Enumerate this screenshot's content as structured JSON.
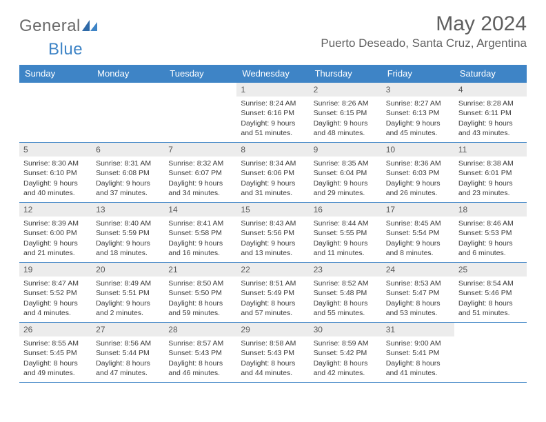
{
  "logo": {
    "part1": "General",
    "part2": "Blue"
  },
  "title": "May 2024",
  "location": "Puerto Deseado, Santa Cruz, Argentina",
  "colors": {
    "header_bg": "#3e84c6",
    "header_text": "#ffffff",
    "daynum_bg": "#ececec",
    "border": "#3e84c6",
    "title_text": "#5f5f5f",
    "body_text": "#3a3a3a"
  },
  "day_headers": [
    "Sunday",
    "Monday",
    "Tuesday",
    "Wednesday",
    "Thursday",
    "Friday",
    "Saturday"
  ],
  "weeks": [
    [
      {
        "day": "",
        "sunrise": "",
        "sunset": "",
        "daylight": ""
      },
      {
        "day": "",
        "sunrise": "",
        "sunset": "",
        "daylight": ""
      },
      {
        "day": "",
        "sunrise": "",
        "sunset": "",
        "daylight": ""
      },
      {
        "day": "1",
        "sunrise": "Sunrise: 8:24 AM",
        "sunset": "Sunset: 6:16 PM",
        "daylight": "Daylight: 9 hours and 51 minutes."
      },
      {
        "day": "2",
        "sunrise": "Sunrise: 8:26 AM",
        "sunset": "Sunset: 6:15 PM",
        "daylight": "Daylight: 9 hours and 48 minutes."
      },
      {
        "day": "3",
        "sunrise": "Sunrise: 8:27 AM",
        "sunset": "Sunset: 6:13 PM",
        "daylight": "Daylight: 9 hours and 45 minutes."
      },
      {
        "day": "4",
        "sunrise": "Sunrise: 8:28 AM",
        "sunset": "Sunset: 6:11 PM",
        "daylight": "Daylight: 9 hours and 43 minutes."
      }
    ],
    [
      {
        "day": "5",
        "sunrise": "Sunrise: 8:30 AM",
        "sunset": "Sunset: 6:10 PM",
        "daylight": "Daylight: 9 hours and 40 minutes."
      },
      {
        "day": "6",
        "sunrise": "Sunrise: 8:31 AM",
        "sunset": "Sunset: 6:08 PM",
        "daylight": "Daylight: 9 hours and 37 minutes."
      },
      {
        "day": "7",
        "sunrise": "Sunrise: 8:32 AM",
        "sunset": "Sunset: 6:07 PM",
        "daylight": "Daylight: 9 hours and 34 minutes."
      },
      {
        "day": "8",
        "sunrise": "Sunrise: 8:34 AM",
        "sunset": "Sunset: 6:06 PM",
        "daylight": "Daylight: 9 hours and 31 minutes."
      },
      {
        "day": "9",
        "sunrise": "Sunrise: 8:35 AM",
        "sunset": "Sunset: 6:04 PM",
        "daylight": "Daylight: 9 hours and 29 minutes."
      },
      {
        "day": "10",
        "sunrise": "Sunrise: 8:36 AM",
        "sunset": "Sunset: 6:03 PM",
        "daylight": "Daylight: 9 hours and 26 minutes."
      },
      {
        "day": "11",
        "sunrise": "Sunrise: 8:38 AM",
        "sunset": "Sunset: 6:01 PM",
        "daylight": "Daylight: 9 hours and 23 minutes."
      }
    ],
    [
      {
        "day": "12",
        "sunrise": "Sunrise: 8:39 AM",
        "sunset": "Sunset: 6:00 PM",
        "daylight": "Daylight: 9 hours and 21 minutes."
      },
      {
        "day": "13",
        "sunrise": "Sunrise: 8:40 AM",
        "sunset": "Sunset: 5:59 PM",
        "daylight": "Daylight: 9 hours and 18 minutes."
      },
      {
        "day": "14",
        "sunrise": "Sunrise: 8:41 AM",
        "sunset": "Sunset: 5:58 PM",
        "daylight": "Daylight: 9 hours and 16 minutes."
      },
      {
        "day": "15",
        "sunrise": "Sunrise: 8:43 AM",
        "sunset": "Sunset: 5:56 PM",
        "daylight": "Daylight: 9 hours and 13 minutes."
      },
      {
        "day": "16",
        "sunrise": "Sunrise: 8:44 AM",
        "sunset": "Sunset: 5:55 PM",
        "daylight": "Daylight: 9 hours and 11 minutes."
      },
      {
        "day": "17",
        "sunrise": "Sunrise: 8:45 AM",
        "sunset": "Sunset: 5:54 PM",
        "daylight": "Daylight: 9 hours and 8 minutes."
      },
      {
        "day": "18",
        "sunrise": "Sunrise: 8:46 AM",
        "sunset": "Sunset: 5:53 PM",
        "daylight": "Daylight: 9 hours and 6 minutes."
      }
    ],
    [
      {
        "day": "19",
        "sunrise": "Sunrise: 8:47 AM",
        "sunset": "Sunset: 5:52 PM",
        "daylight": "Daylight: 9 hours and 4 minutes."
      },
      {
        "day": "20",
        "sunrise": "Sunrise: 8:49 AM",
        "sunset": "Sunset: 5:51 PM",
        "daylight": "Daylight: 9 hours and 2 minutes."
      },
      {
        "day": "21",
        "sunrise": "Sunrise: 8:50 AM",
        "sunset": "Sunset: 5:50 PM",
        "daylight": "Daylight: 8 hours and 59 minutes."
      },
      {
        "day": "22",
        "sunrise": "Sunrise: 8:51 AM",
        "sunset": "Sunset: 5:49 PM",
        "daylight": "Daylight: 8 hours and 57 minutes."
      },
      {
        "day": "23",
        "sunrise": "Sunrise: 8:52 AM",
        "sunset": "Sunset: 5:48 PM",
        "daylight": "Daylight: 8 hours and 55 minutes."
      },
      {
        "day": "24",
        "sunrise": "Sunrise: 8:53 AM",
        "sunset": "Sunset: 5:47 PM",
        "daylight": "Daylight: 8 hours and 53 minutes."
      },
      {
        "day": "25",
        "sunrise": "Sunrise: 8:54 AM",
        "sunset": "Sunset: 5:46 PM",
        "daylight": "Daylight: 8 hours and 51 minutes."
      }
    ],
    [
      {
        "day": "26",
        "sunrise": "Sunrise: 8:55 AM",
        "sunset": "Sunset: 5:45 PM",
        "daylight": "Daylight: 8 hours and 49 minutes."
      },
      {
        "day": "27",
        "sunrise": "Sunrise: 8:56 AM",
        "sunset": "Sunset: 5:44 PM",
        "daylight": "Daylight: 8 hours and 47 minutes."
      },
      {
        "day": "28",
        "sunrise": "Sunrise: 8:57 AM",
        "sunset": "Sunset: 5:43 PM",
        "daylight": "Daylight: 8 hours and 46 minutes."
      },
      {
        "day": "29",
        "sunrise": "Sunrise: 8:58 AM",
        "sunset": "Sunset: 5:43 PM",
        "daylight": "Daylight: 8 hours and 44 minutes."
      },
      {
        "day": "30",
        "sunrise": "Sunrise: 8:59 AM",
        "sunset": "Sunset: 5:42 PM",
        "daylight": "Daylight: 8 hours and 42 minutes."
      },
      {
        "day": "31",
        "sunrise": "Sunrise: 9:00 AM",
        "sunset": "Sunset: 5:41 PM",
        "daylight": "Daylight: 8 hours and 41 minutes."
      },
      {
        "day": "",
        "sunrise": "",
        "sunset": "",
        "daylight": ""
      }
    ]
  ]
}
